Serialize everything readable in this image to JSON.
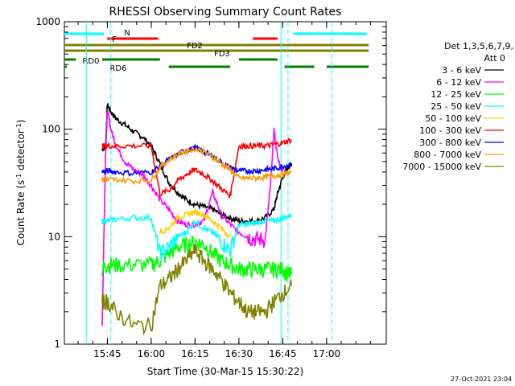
{
  "chart_data": {
    "type": "line",
    "title": "RHESSI Observing Summary Count Rates",
    "xlabel": "Start Time (30-Mar-15 15:30:22)",
    "ylabel_main": "Count Rate (s",
    "ylabel_sup1": "-1",
    "ylabel_mid": " detector",
    "ylabel_sup2": "-1",
    "ylabel_end": ")",
    "y_scale": "log",
    "ylim": [
      1,
      1000
    ],
    "xlim_minutes": [
      15.5,
      16.83
    ],
    "x_axis_origin": "15:30:22",
    "xticks": [
      {
        "label": "15:45",
        "hour": 15.75
      },
      {
        "label": "16:00",
        "hour": 16.0
      },
      {
        "label": "16:15",
        "hour": 16.25
      },
      {
        "label": "16:30",
        "hour": 16.5
      },
      {
        "label": "16:45",
        "hour": 16.75
      },
      {
        "label": "17:00",
        "hour": 17.0
      }
    ],
    "yticks": [
      {
        "label": "1",
        "value": 1
      },
      {
        "label": "10",
        "value": 10
      },
      {
        "label": "100",
        "value": 100
      },
      {
        "label": "1000",
        "value": 1000
      }
    ],
    "legend": {
      "header1": "Det 1,3,5,6,7,9,",
      "header2": "Att 0",
      "placement": "right"
    },
    "series": [
      {
        "name": "3 - 6 keV",
        "color": "#000000",
        "x": [
          15.72,
          15.74,
          15.75,
          15.77,
          15.8,
          15.85,
          15.9,
          15.95,
          16.0,
          16.05,
          16.1,
          16.15,
          16.2,
          16.25,
          16.3,
          16.35,
          16.4,
          16.45,
          16.5,
          16.55,
          16.6,
          16.65,
          16.7,
          16.72,
          16.75,
          16.78,
          16.8
        ],
        "y": [
          65,
          68,
          170,
          145,
          125,
          110,
          95,
          85,
          70,
          48,
          32,
          26,
          22,
          20,
          19,
          18,
          16,
          15,
          14,
          14,
          14,
          15,
          18,
          25,
          36,
          44,
          48
        ]
      },
      {
        "name": "6 - 12 keV",
        "color": "#ff00ff",
        "x": [
          15.72,
          15.74,
          15.75,
          15.77,
          15.8,
          15.85,
          15.9,
          15.95,
          16.0,
          16.05,
          16.1,
          16.15,
          16.2,
          16.25,
          16.3,
          16.35,
          16.4,
          16.45,
          16.5,
          16.55,
          16.6,
          16.65,
          16.68,
          16.7,
          16.72,
          16.75
        ],
        "y": [
          1.5,
          60,
          150,
          100,
          70,
          50,
          42,
          38,
          30,
          22,
          18,
          14,
          13,
          13,
          14,
          26,
          16,
          13,
          11,
          10,
          9.5,
          9.5,
          30,
          100,
          55,
          40
        ]
      },
      {
        "name": "12 - 25 keV",
        "color": "#00ff00",
        "x": [
          15.72,
          15.75,
          15.8,
          15.9,
          16.0,
          16.05,
          16.1,
          16.15,
          16.2,
          16.25,
          16.3,
          16.35,
          16.4,
          16.45,
          16.5,
          16.55,
          16.6,
          16.65,
          16.7,
          16.75,
          16.78,
          16.8
        ],
        "y": [
          5,
          5.5,
          5.5,
          5.5,
          5.5,
          6,
          7,
          8,
          8.5,
          9,
          8.5,
          7,
          6,
          5.5,
          5,
          5,
          5,
          5,
          5,
          5,
          4.5,
          4.5
        ]
      },
      {
        "name": "25 - 50 keV",
        "color": "#00ffff",
        "x": [
          15.72,
          15.75,
          15.8,
          15.9,
          16.0,
          16.05,
          16.1,
          16.15,
          16.2,
          16.25,
          16.3,
          16.35,
          16.4,
          16.45,
          16.5,
          16.55,
          16.6,
          16.65,
          16.7,
          16.75,
          16.8
        ],
        "y": [
          14,
          14,
          14.5,
          15,
          15,
          7,
          8,
          10,
          11,
          14,
          12,
          11,
          9,
          7.5,
          13,
          13,
          13.5,
          14,
          14,
          15,
          16
        ]
      },
      {
        "name": "50 - 100 keV",
        "color": "#ffcc00",
        "x": [
          16.05,
          16.1,
          16.15,
          16.2,
          16.25,
          16.3,
          16.35,
          16.4,
          16.45
        ],
        "y": [
          11,
          12,
          15,
          16,
          17,
          16,
          14,
          12,
          10
        ]
      },
      {
        "name": "100 - 300 keV",
        "color": "#ff0000",
        "x": [
          15.72,
          15.75,
          15.8,
          15.9,
          16.0,
          16.05,
          16.1,
          16.15,
          16.2,
          16.25,
          16.3,
          16.35,
          16.4,
          16.45,
          16.5,
          16.55,
          16.6,
          16.65,
          16.7,
          16.75,
          16.8
        ],
        "y": [
          70,
          70,
          70,
          70,
          70,
          25,
          27,
          33,
          38,
          42,
          38,
          33,
          28,
          24,
          70,
          70,
          70,
          70,
          72,
          75,
          80
        ]
      },
      {
        "name": "300 - 800 keV",
        "color": "#0000ff",
        "x": [
          15.72,
          15.75,
          15.8,
          15.9,
          16.0,
          16.05,
          16.1,
          16.15,
          16.2,
          16.25,
          16.3,
          16.35,
          16.4,
          16.45,
          16.5,
          16.55,
          16.6,
          16.65,
          16.7,
          16.75,
          16.8
        ],
        "y": [
          40,
          41,
          40,
          39,
          40,
          45,
          52,
          58,
          64,
          67,
          62,
          56,
          49,
          44,
          41,
          41,
          41,
          42,
          43,
          45,
          48
        ]
      },
      {
        "name": "800 - 7000 keV",
        "color": "#ff9900",
        "x": [
          15.72,
          15.75,
          15.8,
          15.9,
          16.0,
          16.05,
          16.1,
          16.15,
          16.2,
          16.25,
          16.3,
          16.35,
          16.4,
          16.45,
          16.5,
          16.55,
          16.6,
          16.65,
          16.7,
          16.75,
          16.8
        ],
        "y": [
          34,
          34,
          34,
          33,
          34,
          44,
          52,
          58,
          63,
          66,
          62,
          55,
          48,
          42,
          35,
          35,
          35,
          36,
          37,
          38,
          40
        ]
      },
      {
        "name": "7000 - 15000 keV",
        "color": "#808000",
        "x": [
          15.72,
          15.75,
          15.8,
          15.9,
          16.0,
          16.05,
          16.1,
          16.15,
          16.2,
          16.25,
          16.3,
          16.35,
          16.4,
          16.45,
          16.5,
          16.55,
          16.6,
          16.65,
          16.7,
          16.75,
          16.8
        ],
        "y": [
          2.5,
          2.5,
          2,
          1.5,
          1.5,
          3.5,
          4,
          5,
          6,
          7.5,
          6,
          5,
          4,
          3,
          2.5,
          2,
          2,
          2,
          2.5,
          3,
          3.5
        ]
      }
    ],
    "flags": [
      {
        "name": "N",
        "color": "#00ffff",
        "segments": [
          [
            15.3,
            15.73
          ],
          [
            16.81,
            17.23
          ]
        ]
      },
      {
        "name": "F",
        "color": "#ff0000",
        "segments": [
          [
            15.75,
            16.04
          ],
          [
            16.58,
            16.72
          ]
        ]
      },
      {
        "name": "FD2",
        "color": "#808000",
        "segments": [
          [
            15.3,
            17.24
          ]
        ]
      },
      {
        "name": "FD3",
        "color": "#808000",
        "segments": [
          [
            15.3,
            17.24
          ]
        ]
      },
      {
        "name": "RD0",
        "color": "#008000",
        "segments": [
          [
            15.3,
            15.57
          ],
          [
            15.72,
            16.05
          ],
          [
            16.5,
            16.72
          ]
        ]
      },
      {
        "name": "RD6",
        "color": "#008000",
        "segments": [
          [
            15.3,
            15.52
          ],
          [
            16.1,
            16.45
          ],
          [
            16.76,
            16.93
          ],
          [
            17.0,
            17.24
          ]
        ]
      }
    ],
    "vlines": [
      {
        "hour": 15.63,
        "style": "solid"
      },
      {
        "hour": 15.77,
        "style": "dashed"
      },
      {
        "hour": 16.74,
        "style": "solid"
      },
      {
        "hour": 16.78,
        "style": "dashed"
      },
      {
        "hour": 17.03,
        "style": "dashed"
      }
    ]
  },
  "footer": {
    "timestamp": "27-Oct-2021 23:04"
  }
}
